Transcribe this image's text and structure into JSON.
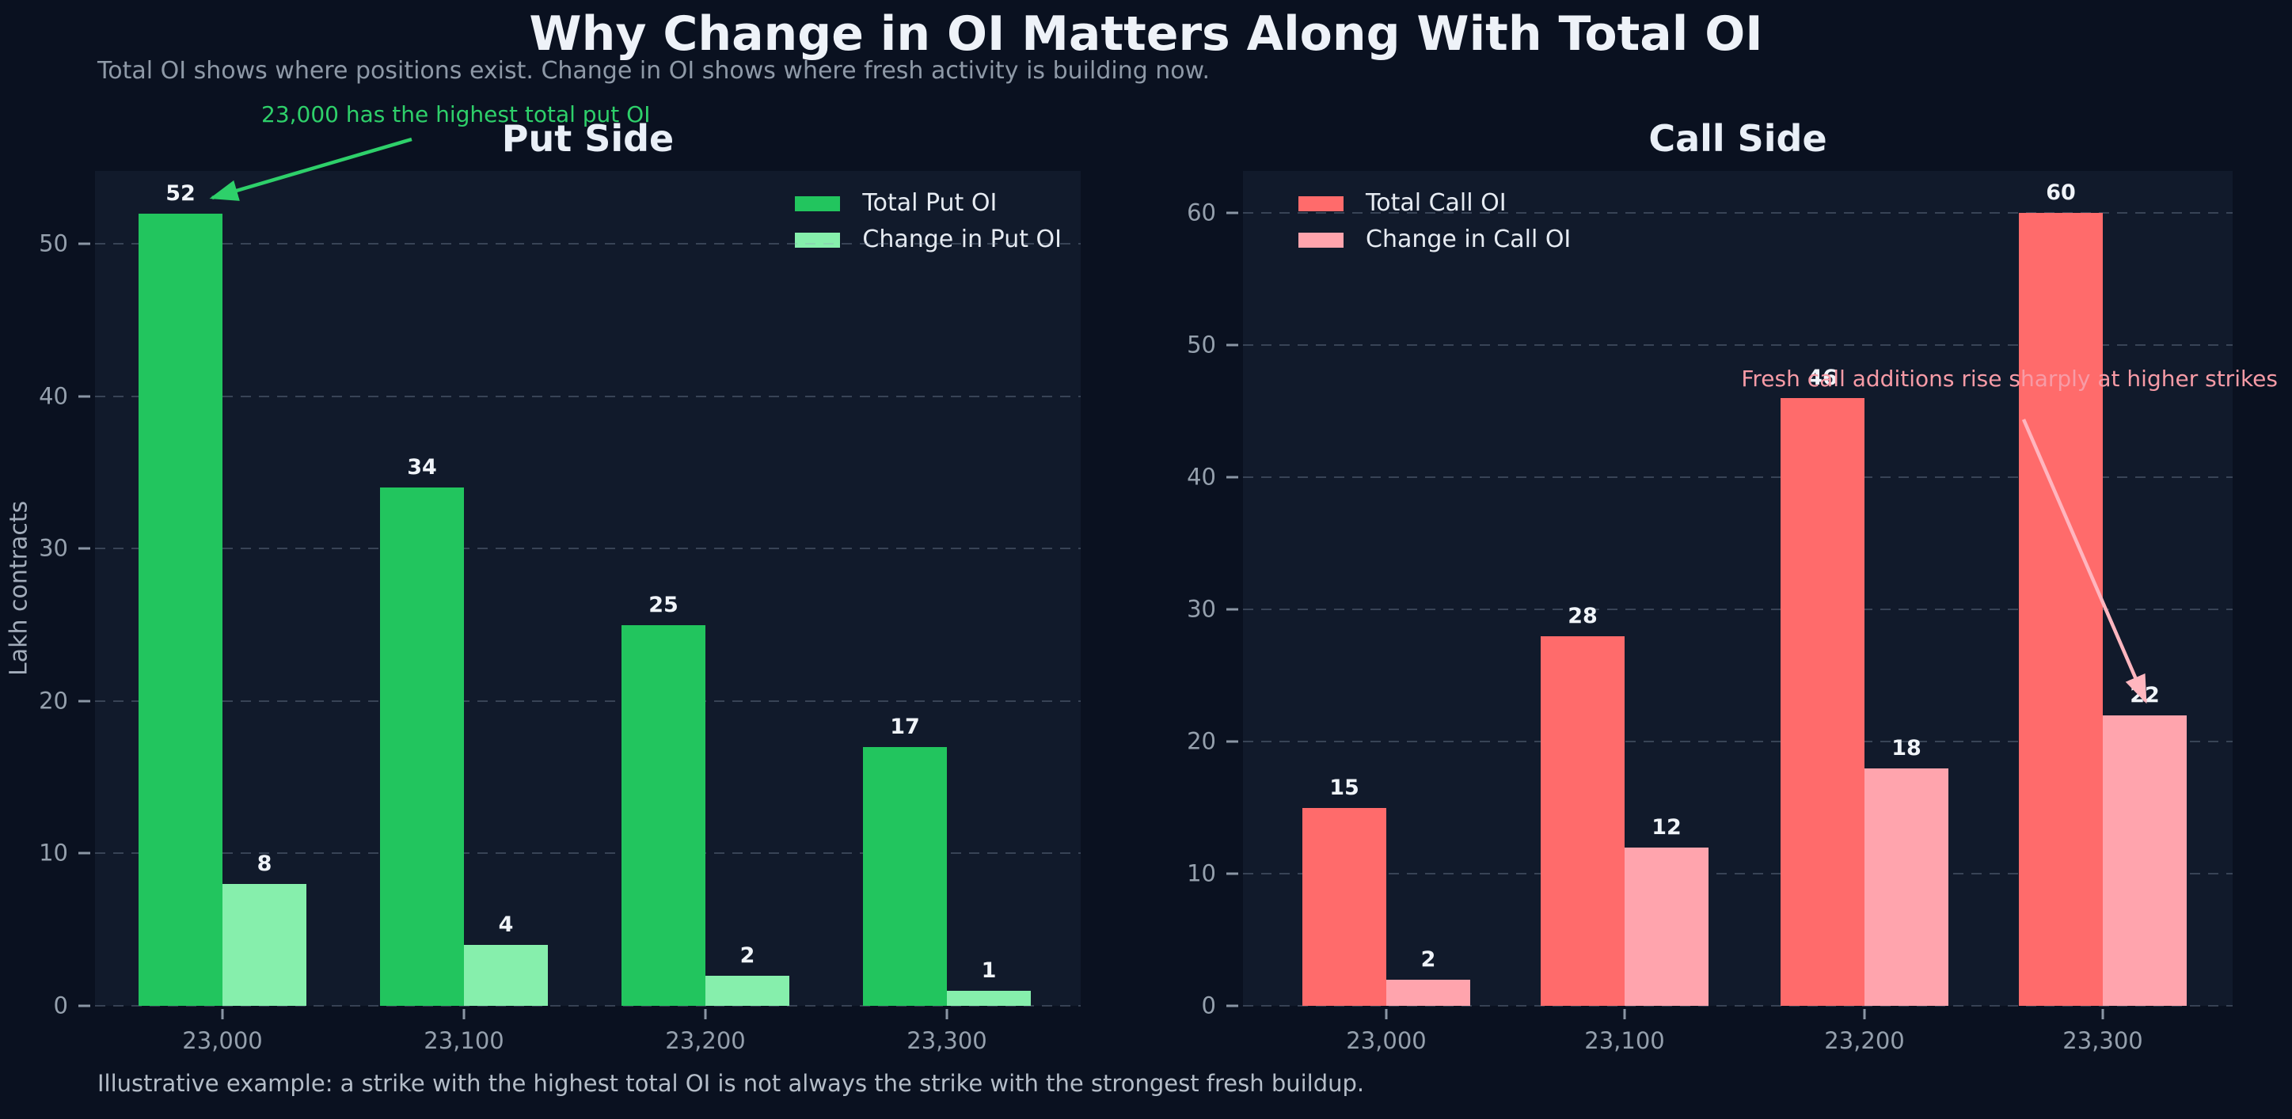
{
  "figure": {
    "title": "Why Change in OI Matters Along With Total OI",
    "subtitle": "Total OI shows where positions exist. Change in OI shows where fresh activity is building now.",
    "footer": "Illustrative example: a strike with the highest total OI is not always the strike with the strongest fresh buildup."
  },
  "colors": {
    "figure_background": "#0a1120",
    "axes_background": "#111a2b",
    "grid": "rgba(148,163,184,0.30)",
    "text_primary": "#eef2f8",
    "text_muted": "#95a0ad",
    "total_put": "#22c55e",
    "change_put": "#86efac",
    "total_call": "#ff6b6b",
    "change_call": "#ffa4ad",
    "put_annotation": "#2ed06a",
    "put_arrow": "#2ed06a",
    "call_annotation": "#f79ba6",
    "call_arrow": "#ffb6bf"
  },
  "chart_data": [
    {
      "type": "bar",
      "title": "Put Side",
      "ylabel": "Lakh contracts",
      "categories": [
        "23,000",
        "23,100",
        "23,200",
        "23,300"
      ],
      "series": [
        {
          "name": "Total Put OI",
          "color": "#22c55e",
          "values": [
            52,
            34,
            25,
            17
          ]
        },
        {
          "name": "Change in Put OI",
          "color": "#86efac",
          "values": [
            8,
            4,
            2,
            1
          ]
        }
      ],
      "ylim": [
        0,
        54.8
      ],
      "yticks": [
        0,
        10,
        20,
        30,
        40,
        50
      ],
      "grid": true,
      "legend_position": "top-right",
      "annotation": {
        "text": "23,000 has the highest total put OI",
        "color": "#2ed06a",
        "points_to": "top of 23,000 Total Put OI bar"
      }
    },
    {
      "type": "bar",
      "title": "Call Side",
      "ylabel": "",
      "categories": [
        "23,000",
        "23,100",
        "23,200",
        "23,300"
      ],
      "series": [
        {
          "name": "Total Call OI",
          "color": "#ff6b6b",
          "values": [
            15,
            28,
            46,
            60
          ]
        },
        {
          "name": "Change in Call OI",
          "color": "#ffa4ad",
          "values": [
            2,
            12,
            18,
            22
          ]
        }
      ],
      "ylim": [
        0,
        63.2
      ],
      "yticks": [
        0,
        10,
        20,
        30,
        40,
        50,
        60
      ],
      "grid": true,
      "legend_position": "top-left",
      "annotation": {
        "text": "Fresh call additions rise sharply at higher strikes",
        "color": "#f79ba6",
        "points_to": "top of 23,300 Change in Call OI bar"
      }
    }
  ]
}
